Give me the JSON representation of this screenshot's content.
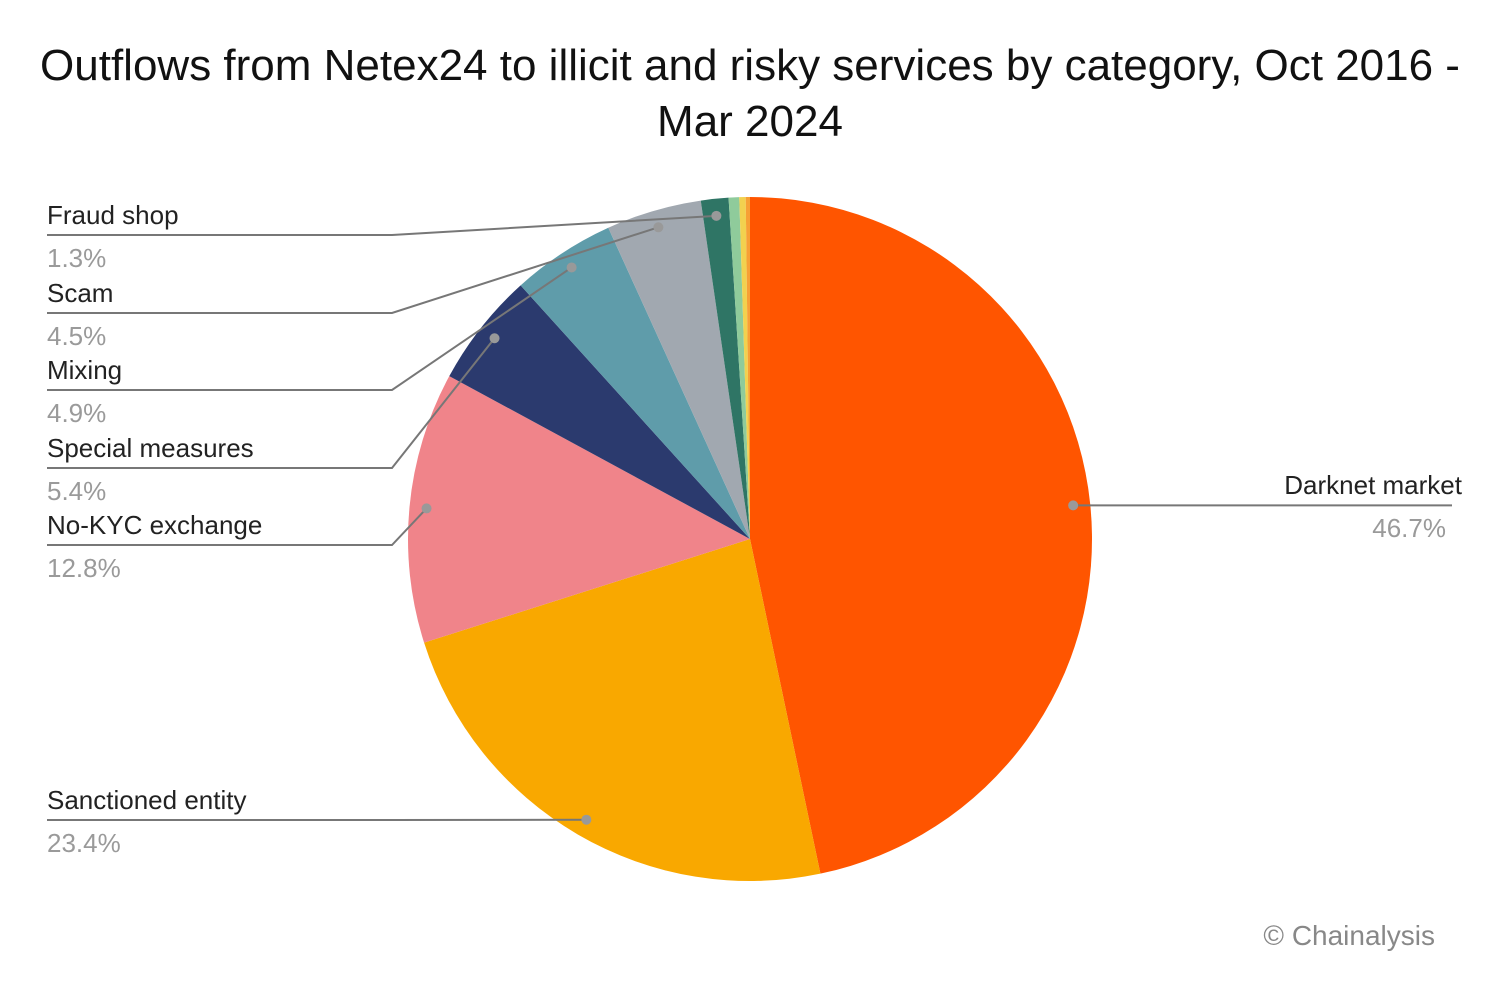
{
  "chart_data": {
    "type": "pie",
    "title": "Outflows from Netex24 to illicit and risky services by category, Oct 2016 - Mar 2024",
    "categories": [
      "Darknet market",
      "Sanctioned entity",
      "No-KYC exchange",
      "Special measures",
      "Mixing",
      "Scam",
      "Fraud shop",
      null,
      null,
      null
    ],
    "values": [
      46.7,
      23.4,
      12.8,
      5.4,
      4.9,
      4.5,
      1.3,
      0.5,
      0.3,
      0.2
    ],
    "value_labels": [
      "46.7%",
      "23.4%",
      "12.8%",
      "5.4%",
      "4.9%",
      "4.5%",
      "1.3%",
      null,
      null,
      null
    ],
    "colors": [
      "#ff5500",
      "#f9a800",
      "#f0848a",
      "#2b3a6e",
      "#5f9caa",
      "#a1a8b0",
      "#2f7565",
      "#8fcb9b",
      "#f2d14f",
      "#f7a035"
    ],
    "source": "© Chainalysis"
  }
}
